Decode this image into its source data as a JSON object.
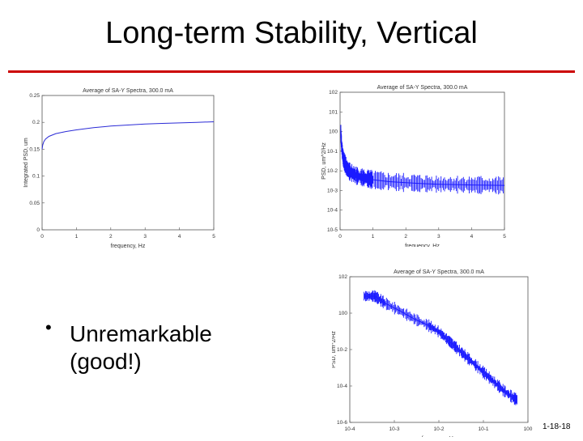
{
  "slide": {
    "title": "Long-term Stability, Vertical",
    "bullet_symbol": "•",
    "bullet_text": "Unremarkable (good!)",
    "slide_number": "1-18-18",
    "accent_color": "#cc0000"
  },
  "chart_data": [
    {
      "type": "line",
      "title": "Average of SA-Y Spectra, 300.0 mA",
      "xlabel": "frequency, Hz",
      "ylabel": "Integrated PSD, um",
      "xlim": [
        0,
        5
      ],
      "ylim": [
        0,
        0.25
      ],
      "x_ticks": [
        "0",
        "1",
        "2",
        "3",
        "4",
        "5"
      ],
      "y_ticks": [
        "0",
        "0.05",
        "0.1",
        "0.15",
        "0.2",
        "0.25"
      ],
      "series": [
        {
          "color": "#2b2bd6",
          "x": [
            0.0,
            0.02,
            0.05,
            0.1,
            0.2,
            0.4,
            0.7,
            1.0,
            1.5,
            2.0,
            2.5,
            3.0,
            3.5,
            4.0,
            4.5,
            5.0
          ],
          "y": [
            0.15,
            0.158,
            0.164,
            0.169,
            0.174,
            0.179,
            0.183,
            0.186,
            0.19,
            0.193,
            0.195,
            0.197,
            0.198,
            0.199,
            0.2,
            0.201
          ]
        }
      ]
    },
    {
      "type": "line",
      "title": "Average of SA-Y Spectra, 300.0 mA",
      "xlabel": "frequency, Hz",
      "ylabel": "PSD, um^2/Hz",
      "xlim": [
        0,
        5
      ],
      "ylim": [
        -5,
        2
      ],
      "log_y": true,
      "x_ticks": [
        "0",
        "1",
        "2",
        "3",
        "4",
        "5"
      ],
      "y_ticks": [
        "10-5",
        "10-4",
        "10-3",
        "10-2",
        "10-1",
        "100",
        "101",
        "102"
      ],
      "series": [
        {
          "color": "#1a1aff",
          "x": [
            0.02,
            0.05,
            0.1,
            0.2,
            0.3,
            0.5,
            0.7,
            1.0,
            1.5,
            2.0,
            2.5,
            3.0,
            3.5,
            4.0,
            4.5,
            5.0
          ],
          "y": [
            0.0,
            -0.8,
            -1.4,
            -1.85,
            -2.05,
            -2.25,
            -2.35,
            -2.45,
            -2.55,
            -2.6,
            -2.65,
            -2.68,
            -2.7,
            -2.72,
            -2.73,
            -2.74
          ]
        }
      ]
    },
    {
      "type": "line",
      "title": "Average of SA-Y Spectra, 300.0 mA",
      "xlabel": "frequency, Hz",
      "ylabel": "PSD, um^2/Hz",
      "xlim": [
        -4,
        1
      ],
      "ylim": [
        -7,
        2
      ],
      "log_x": true,
      "log_y": true,
      "x_ticks": [
        "10-4",
        "10-3",
        "10-2",
        "10-1",
        "100"
      ],
      "y_ticks": [
        "10-6",
        "10-4",
        "10-2",
        "100",
        "102"
      ],
      "series": [
        {
          "color": "#1a1aff",
          "x": [
            -3.6,
            -3.3,
            -3.0,
            -2.6,
            -2.2,
            -1.8,
            -1.5,
            -1.2,
            -0.9,
            -0.6,
            -0.3,
            0.0,
            0.3,
            0.6,
            0.7
          ],
          "y": [
            0.8,
            0.8,
            0.35,
            -0.1,
            -0.6,
            -1.0,
            -1.4,
            -2.0,
            -2.6,
            -3.2,
            -3.8,
            -4.4,
            -5.0,
            -5.5,
            -5.6
          ]
        }
      ]
    }
  ]
}
